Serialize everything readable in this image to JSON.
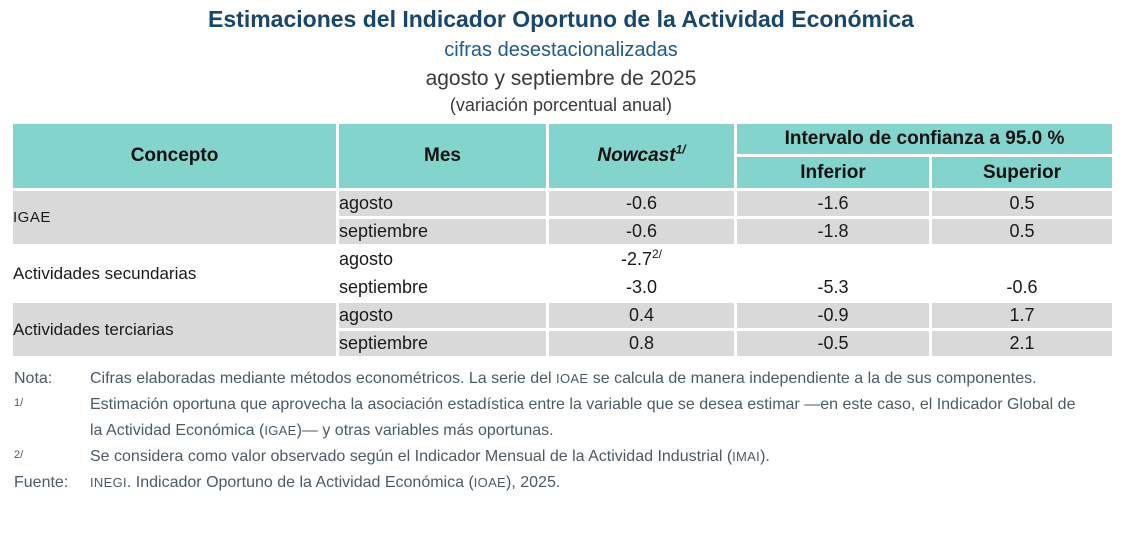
{
  "header": {
    "title": "Estimaciones del Indicador Oportuno de la Actividad Económica",
    "subtitle_seasonal": "cifras desestacionalizadas",
    "subtitle_period": "agosto y septiembre de 2025",
    "subtitle_variation": "(variación porcentual anual)"
  },
  "table": {
    "headers": {
      "concepto": "Concepto",
      "mes": "Mes",
      "nowcast": "Nowcast",
      "nowcast_footnote": "1/",
      "interval": "Intervalo de confianza a 95.0 %",
      "inferior": "Inferior",
      "superior": "Superior"
    },
    "rows": [
      {
        "concepto": "IGAE",
        "mes": "agosto",
        "nowcast": "-0.6",
        "inferior": "-1.6",
        "superior": "0.5"
      },
      {
        "mes": "septiembre",
        "nowcast": "-0.6",
        "inferior": "-1.8",
        "superior": "0.5"
      },
      {
        "concepto": "Actividades secundarias",
        "mes": "agosto",
        "nowcast": "-2.7",
        "nowcast_footnote": "2/",
        "inferior": "",
        "superior": ""
      },
      {
        "mes": "septiembre",
        "nowcast": "-3.0",
        "inferior": "-5.3",
        "superior": "-0.6"
      },
      {
        "concepto": "Actividades terciarias",
        "mes": "agosto",
        "nowcast": "0.4",
        "inferior": "-0.9",
        "superior": "1.7"
      },
      {
        "mes": "septiembre",
        "nowcast": "0.8",
        "inferior": "-0.5",
        "superior": "2.1"
      }
    ]
  },
  "notes": [
    {
      "label": "Nota:",
      "sup": false,
      "segments": [
        {
          "t": "Cifras elaboradas mediante métodos econométricos. La serie del "
        },
        {
          "t": "IOAE",
          "caps": true
        },
        {
          "t": " se calcula de manera independiente a la de sus componentes."
        }
      ]
    },
    {
      "label": "1/",
      "sup": true,
      "segments": [
        {
          "t": "Estimación oportuna que aprovecha la asociación estadística entre la variable que se desea estimar —en este caso, el Indicador Global de la Actividad Económica ("
        },
        {
          "t": "IGAE",
          "caps": true
        },
        {
          "t": ")— y otras variables más oportunas."
        }
      ]
    },
    {
      "label": "2/",
      "sup": true,
      "segments": [
        {
          "t": "Se considera como valor observado según el Indicador Mensual de la Actividad Industrial ("
        },
        {
          "t": "IMAI",
          "caps": true
        },
        {
          "t": ")."
        }
      ]
    },
    {
      "label": "Fuente:",
      "sup": false,
      "segments": [
        {
          "t": "INEGI",
          "caps": true
        },
        {
          "t": ". Indicador Oportuno de la Actividad Económica ("
        },
        {
          "t": "IOAE",
          "caps": true
        },
        {
          "t": "), 2025."
        }
      ]
    }
  ],
  "colors": {
    "title_navy": "#17466F",
    "subtitle_blue": "#1E5B8D",
    "subtitle_gray": "#3A3A3A",
    "header_teal": "#82D4CC",
    "subheader_teal": "#CBEDE9",
    "row_gray": "#D9D9D9",
    "row_white": "#FFFFFF",
    "notes_text": "#4D5A66",
    "table_text": "#1A1A1A"
  }
}
